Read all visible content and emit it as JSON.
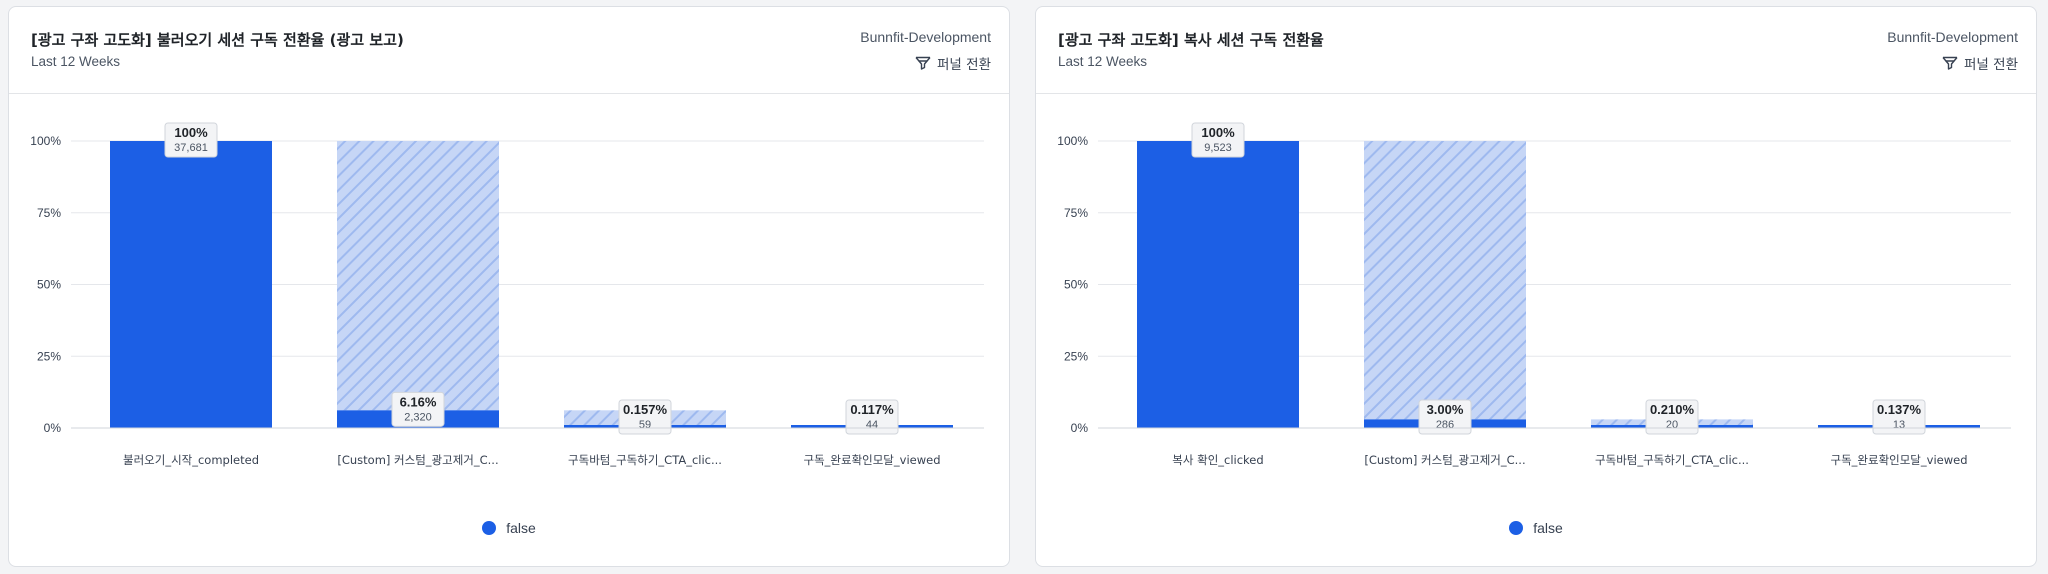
{
  "colors": {
    "bar": "#1c5fe5",
    "dropoff_fill": "#c6d6f6",
    "dropoff_stripe": "#9eb9ef",
    "grid": "#e5e7eb",
    "axis_text": "#374151"
  },
  "icons": {
    "funnel": "funnel-icon"
  },
  "cards": [
    {
      "title": "[광고 구좌 고도화] 불러오기 세션 구독 전환율 (광고 보고)",
      "subtitle": "Last 12 Weeks",
      "project": "Bunnfit-Development",
      "funnel_label": "퍼널 전환",
      "legend_label": "false"
    },
    {
      "title": "[광고 구좌 고도화] 복사 세션 구독 전환율",
      "subtitle": "Last 12 Weeks",
      "project": "Bunnfit-Development",
      "funnel_label": "퍼널 전환",
      "legend_label": "false"
    }
  ],
  "chart_data": [
    {
      "type": "bar",
      "ylim": [
        0,
        100
      ],
      "y_ticks": [
        "0%",
        "25%",
        "50%",
        "75%",
        "100%"
      ],
      "grid": true,
      "legend_position": "bottom-center",
      "categories": [
        "불러오기_시작_completed",
        "[Custom] 커스텀_광고제거_C...",
        "구독바텀_구독하기_CTA_clic...",
        "구독_완료확인모달_viewed"
      ],
      "series": [
        {
          "name": "false",
          "values": [
            100,
            6.16,
            0.157,
            0.117
          ],
          "pct_labels": [
            "100%",
            "6.16%",
            "0.157%",
            "0.117%"
          ],
          "counts": [
            "37,681",
            "2,320",
            "59",
            "44"
          ]
        }
      ],
      "dropoff_from": [
        null,
        100,
        6.16,
        0.157
      ]
    },
    {
      "type": "bar",
      "ylim": [
        0,
        100
      ],
      "y_ticks": [
        "0%",
        "25%",
        "50%",
        "75%",
        "100%"
      ],
      "grid": true,
      "legend_position": "bottom-center",
      "categories": [
        "복사 확인_clicked",
        "[Custom] 커스텀_광고제거_C...",
        "구독바텀_구독하기_CTA_clic...",
        "구독_완료확인모달_viewed"
      ],
      "series": [
        {
          "name": "false",
          "values": [
            100,
            3.0,
            0.21,
            0.137
          ],
          "pct_labels": [
            "100%",
            "3.00%",
            "0.210%",
            "0.137%"
          ],
          "counts": [
            "9,523",
            "286",
            "20",
            "13"
          ]
        }
      ],
      "dropoff_from": [
        null,
        100,
        3.0,
        0.21
      ]
    }
  ]
}
